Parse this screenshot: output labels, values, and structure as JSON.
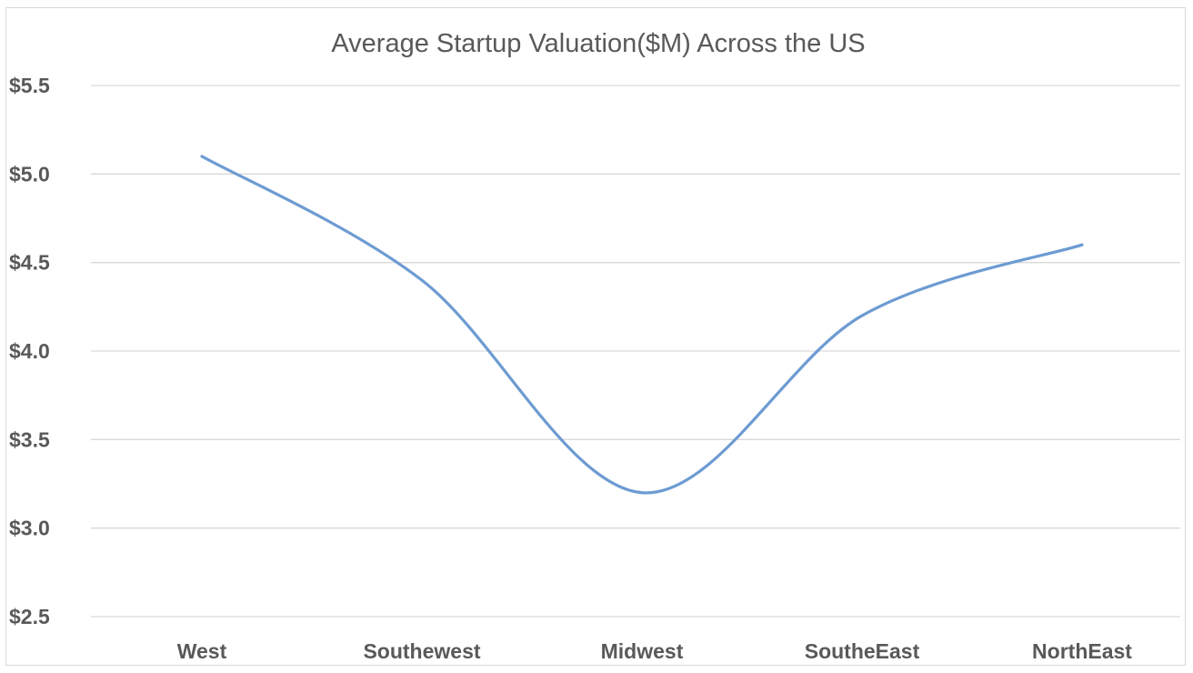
{
  "chart_data": {
    "type": "line",
    "title": "Average Startup Valuation($M) Across the US",
    "xlabel": "",
    "ylabel": "",
    "categories": [
      "West",
      "Southewest",
      "Midwest",
      "SoutheEast",
      "NorthEast"
    ],
    "series": [
      {
        "values": [
          5.1,
          4.4,
          3.2,
          4.2,
          4.6
        ],
        "color": "#6d9bd2",
        "smooth": true
      }
    ],
    "ylim": [
      2.5,
      5.5
    ],
    "yticks": [
      2.5,
      3.0,
      3.5,
      4.0,
      4.5,
      5.0,
      5.5
    ],
    "ytick_labels": [
      "$2.5",
      "$3.0",
      "$3.5",
      "$4.0",
      "$4.5",
      "$5.0",
      "$5.5"
    ],
    "grid": true,
    "legend": "none"
  }
}
